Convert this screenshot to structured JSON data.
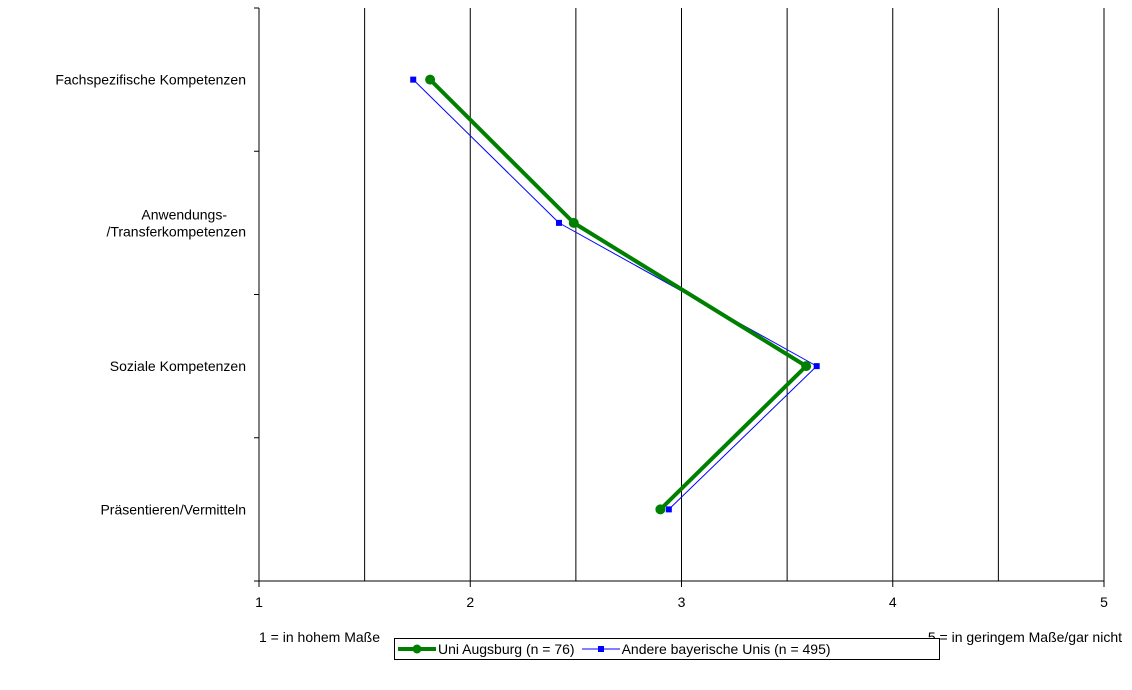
{
  "chart_data": {
    "type": "line",
    "orientation": "horizontal",
    "categories": [
      "Fachspezifische Kompetenzen",
      "Anwendungs-\n/Transferkompetenzen",
      "Soziale Kompetenzen",
      "Präsentieren/Vermitteln"
    ],
    "xlim": [
      1,
      5
    ],
    "xticks": [
      1,
      2,
      3,
      4,
      5
    ],
    "anchor_left": "1 = in hohem Maße",
    "anchor_right": "5 = in geringem Maße/gar nicht",
    "grid": "vertical at 0.5 steps",
    "legend_position": "bottom",
    "series": [
      {
        "name": "Uni Augsburg (n = 76)",
        "values": [
          1.81,
          2.49,
          3.59,
          2.9
        ],
        "color": "#008000",
        "marker": "circle"
      },
      {
        "name": "Andere bayerische Unis (n = 495)",
        "values": [
          1.73,
          2.42,
          3.64,
          2.94
        ],
        "color": "#0000ff",
        "marker": "square"
      }
    ]
  }
}
